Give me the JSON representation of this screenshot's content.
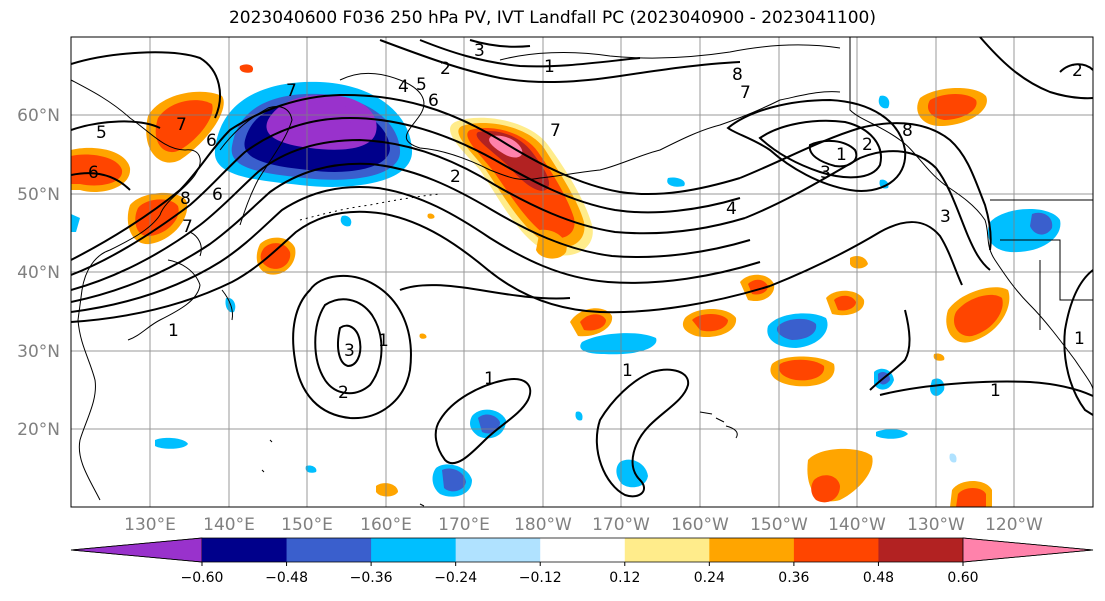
{
  "title": "2023040600 F036 250 hPa PV, IVT Landfall PC (2023040900 - 2023041100)",
  "lat_labels": [
    "60°N",
    "50°N",
    "40°N",
    "30°N",
    "20°N"
  ],
  "lon_labels": [
    "130°E",
    "140°E",
    "150°E",
    "160°E",
    "170°E",
    "180°W",
    "170°W",
    "160°W",
    "150°W",
    "140°W",
    "130°W",
    "120°W"
  ],
  "colorbar": {
    "tick_labels": [
      "−0.60",
      "−0.48",
      "−0.36",
      "−0.24",
      "−0.12",
      "0.12",
      "0.24",
      "0.36",
      "0.48",
      "0.60"
    ],
    "colors": [
      "#9932CC",
      "#00008B",
      "#3A5FCD",
      "#00BFFF",
      "#B0E2FF",
      "#FFFFFF",
      "#FFEC8B",
      "#FFA500",
      "#FF4500",
      "#B22222",
      "#FF82AB"
    ],
    "extend_low_color": "#9932CC",
    "extend_high_color": "#FF82AB"
  },
  "contour_labels": [
    "5",
    "6",
    "7",
    "8",
    "6",
    "7",
    "4",
    "5",
    "6",
    "3",
    "2",
    "1",
    "7",
    "8",
    "7",
    "2",
    "1",
    "3",
    "4",
    "3",
    "2",
    "1",
    "3",
    "2",
    "1",
    "1",
    "1",
    "1",
    "6",
    "7",
    "8",
    "2",
    "1"
  ],
  "colors": {
    "land_outline": "#000000",
    "grid": "#808080",
    "contour": "#000000"
  }
}
